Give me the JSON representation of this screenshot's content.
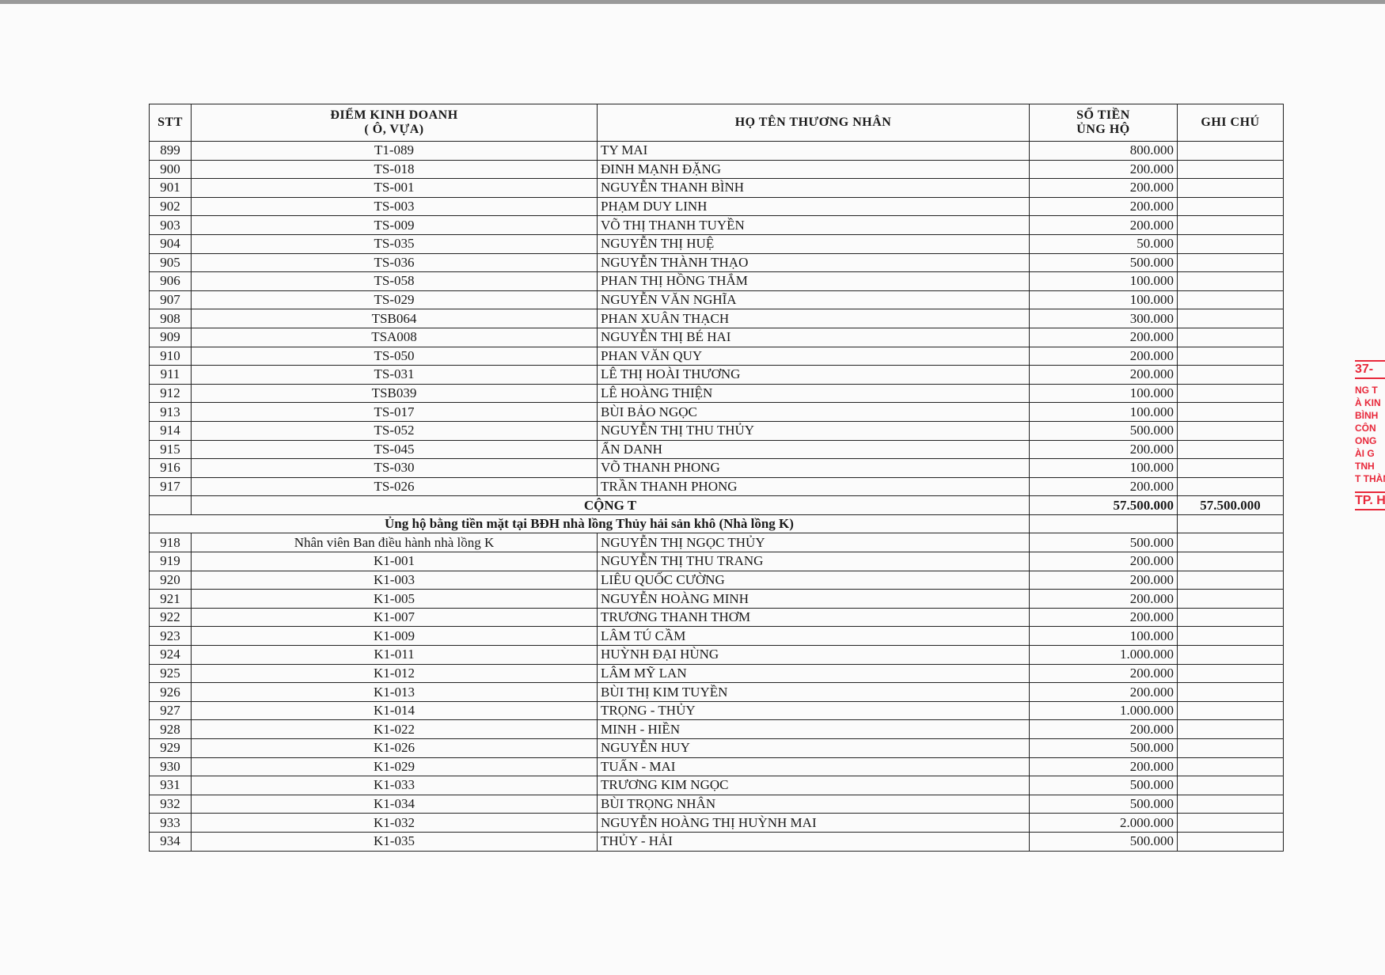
{
  "header": {
    "stt": "STT",
    "diem_line1": "ĐIỂM KINH DOANH",
    "diem_line2": "( Ô, VỰA)",
    "ho_ten": "HỌ TÊN THƯƠNG NHÂN",
    "so_tien_line1": "SỐ TIỀN",
    "so_tien_line2": "ỦNG HỘ",
    "ghi_chu": "GHI CHÚ"
  },
  "rows_a": [
    {
      "stt": "899",
      "diem": "T1-089",
      "ten": "TY MAI",
      "tien": "800.000"
    },
    {
      "stt": "900",
      "diem": "TS-018",
      "ten": "ĐINH MẠNH ĐẶNG",
      "tien": "200.000"
    },
    {
      "stt": "901",
      "diem": "TS-001",
      "ten": "NGUYỄN THANH BÌNH",
      "tien": "200.000"
    },
    {
      "stt": "902",
      "diem": "TS-003",
      "ten": "PHẠM DUY LINH",
      "tien": "200.000"
    },
    {
      "stt": "903",
      "diem": "TS-009",
      "ten": "VÕ THỊ THANH TUYỀN",
      "tien": "200.000"
    },
    {
      "stt": "904",
      "diem": "TS-035",
      "ten": "NGUYỄN THỊ HUỆ",
      "tien": "50.000"
    },
    {
      "stt": "905",
      "diem": "TS-036",
      "ten": "NGUYỄN THÀNH THẠO",
      "tien": "500.000"
    },
    {
      "stt": "906",
      "diem": "TS-058",
      "ten": "PHAN THỊ HỒNG THẮM",
      "tien": "100.000"
    },
    {
      "stt": "907",
      "diem": "TS-029",
      "ten": "NGUYỄN VĂN NGHĨA",
      "tien": "100.000"
    },
    {
      "stt": "908",
      "diem": "TSB064",
      "ten": "PHAN XUÂN THẠCH",
      "tien": "300.000"
    },
    {
      "stt": "909",
      "diem": "TSA008",
      "ten": "NGUYỄN THỊ BÉ HAI",
      "tien": "200.000"
    },
    {
      "stt": "910",
      "diem": "TS-050",
      "ten": "PHAN VĂN QUY",
      "tien": "200.000"
    },
    {
      "stt": "911",
      "diem": "TS-031",
      "ten": "LÊ THỊ HOÀI THƯƠNG",
      "tien": "200.000"
    },
    {
      "stt": "912",
      "diem": "TSB039",
      "ten": "LÊ HOÀNG THIỆN",
      "tien": "100.000"
    },
    {
      "stt": "913",
      "diem": "TS-017",
      "ten": "BÙI BẢO NGỌC",
      "tien": "100.000"
    },
    {
      "stt": "914",
      "diem": "TS-052",
      "ten": "NGUYỄN THỊ THU THỦY",
      "tien": "500.000"
    },
    {
      "stt": "915",
      "diem": "TS-045",
      "ten": "ẨN DANH",
      "tien": "200.000"
    },
    {
      "stt": "916",
      "diem": "TS-030",
      "ten": "VÕ THANH PHONG",
      "tien": "100.000"
    },
    {
      "stt": "917",
      "diem": "TS-026",
      "ten": "TRẦN THANH PHONG",
      "tien": "200.000"
    }
  ],
  "total": {
    "label": "CỘNG T",
    "tien": "57.500.000",
    "ghi_chu": "57.500.000"
  },
  "section_title": "Ủng hộ bằng tiền mặt tại BĐH nhà lồng Thủy hải sản khô (Nhà lồng K)",
  "rows_b": [
    {
      "stt": "918",
      "diem": "Nhân viên Ban điều hành nhà lồng K",
      "ten": "NGUYỄN THỊ NGỌC THỦY",
      "tien": "500.000"
    },
    {
      "stt": "919",
      "diem": "K1-001",
      "ten": "NGUYỄN THỊ THU TRANG",
      "tien": "200.000"
    },
    {
      "stt": "920",
      "diem": "K1-003",
      "ten": "LIÊU QUỐC CƯỜNG",
      "tien": "200.000"
    },
    {
      "stt": "921",
      "diem": "K1-005",
      "ten": "NGUYỄN HOÀNG MINH",
      "tien": "200.000"
    },
    {
      "stt": "922",
      "diem": "K1-007",
      "ten": "TRƯƠNG THANH THƠM",
      "tien": "200.000"
    },
    {
      "stt": "923",
      "diem": "K1-009",
      "ten": "LÂM TÚ CẦM",
      "tien": "100.000"
    },
    {
      "stt": "924",
      "diem": "K1-011",
      "ten": "HUỲNH ĐẠI HÙNG",
      "tien": "1.000.000"
    },
    {
      "stt": "925",
      "diem": "K1-012",
      "ten": "LÂM MỸ LAN",
      "tien": "200.000"
    },
    {
      "stt": "926",
      "diem": "K1-013",
      "ten": "BÙI THỊ KIM TUYỀN",
      "tien": "200.000"
    },
    {
      "stt": "927",
      "diem": "K1-014",
      "ten": "TRỌNG - THỦY",
      "tien": "1.000.000"
    },
    {
      "stt": "928",
      "diem": "K1-022",
      "ten": "MINH - HIỀN",
      "tien": "200.000"
    },
    {
      "stt": "929",
      "diem": "K1-026",
      "ten": "NGUYỄN HUY",
      "tien": "500.000"
    },
    {
      "stt": "930",
      "diem": "K1-029",
      "ten": "TUẤN - MAI",
      "tien": "200.000"
    },
    {
      "stt": "931",
      "diem": "K1-033",
      "ten": "TRƯƠNG KIM NGỌC",
      "tien": "500.000"
    },
    {
      "stt": "932",
      "diem": "K1-034",
      "ten": "BÙI TRỌNG NHÂN",
      "tien": "500.000"
    },
    {
      "stt": "933",
      "diem": "K1-032",
      "ten": "NGUYỄN HOÀNG THỊ HUỲNH MAI",
      "tien": "2.000.000"
    },
    {
      "stt": "934",
      "diem": "K1-035",
      "ten": "THỦY - HẢI",
      "tien": "500.000"
    }
  ],
  "stamp": {
    "color": "#e8283a",
    "lines": [
      "37-",
      "NG T",
      "À KIN",
      "BÌNH",
      "CÔN",
      "ONG",
      "ÀI G",
      "TNH",
      "T THÀN",
      "TP. H"
    ]
  }
}
